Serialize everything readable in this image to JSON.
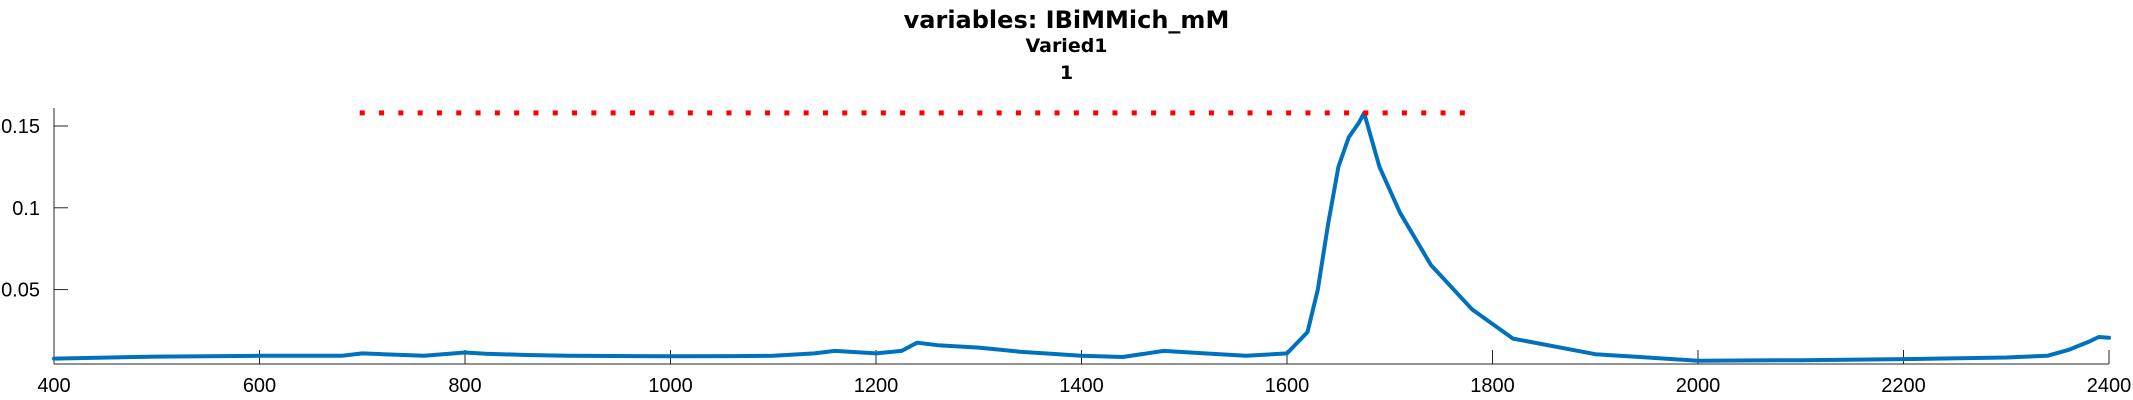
{
  "figure": {
    "title_lines": [
      "variables: IBiMMich_mM",
      "Varied1",
      "1"
    ]
  },
  "chart_data": {
    "type": "line",
    "title": "variables: IBiMMich_mM",
    "subtitle": [
      "Varied1",
      "1"
    ],
    "xlabel": "",
    "ylabel": "",
    "xlim": [
      400,
      2400
    ],
    "ylim": [
      0.0045,
      0.161
    ],
    "xticks": [
      400,
      600,
      800,
      1000,
      1200,
      1400,
      1600,
      1800,
      2000,
      2200,
      2400
    ],
    "yticks": [
      0.05,
      0.1,
      0.15
    ],
    "ytick_labels": [
      "0.05",
      "0.1",
      "0.15"
    ],
    "grid": false,
    "series": [
      {
        "color": "#0072bd",
        "style": "solid",
        "x": [
          400,
          500,
          600,
          680,
          700,
          720,
          760,
          800,
          820,
          860,
          900,
          1000,
          1060,
          1100,
          1140,
          1160,
          1200,
          1225,
          1240,
          1260,
          1300,
          1340,
          1400,
          1440,
          1480,
          1520,
          1560,
          1600,
          1620,
          1630,
          1640,
          1650,
          1660,
          1670,
          1675,
          1690,
          1710,
          1740,
          1780,
          1820,
          1900,
          2000,
          2100,
          2200,
          2300,
          2340,
          2360,
          2380,
          2390,
          2400
        ],
        "y": [
          0.0078,
          0.009,
          0.0095,
          0.0095,
          0.011,
          0.0105,
          0.0095,
          0.0115,
          0.0108,
          0.01,
          0.0095,
          0.0092,
          0.0093,
          0.0095,
          0.011,
          0.0125,
          0.011,
          0.0125,
          0.0175,
          0.016,
          0.0145,
          0.012,
          0.0095,
          0.0088,
          0.0125,
          0.011,
          0.0095,
          0.011,
          0.024,
          0.05,
          0.09,
          0.125,
          0.143,
          0.152,
          0.158,
          0.125,
          0.097,
          0.065,
          0.038,
          0.02,
          0.0105,
          0.0065,
          0.0068,
          0.0075,
          0.0085,
          0.0095,
          0.013,
          0.018,
          0.021,
          0.0205
        ]
      },
      {
        "color": "#ff0000",
        "style": "dotted",
        "x": [
          700,
          1780
        ],
        "y": [
          0.158,
          0.158
        ]
      }
    ]
  }
}
